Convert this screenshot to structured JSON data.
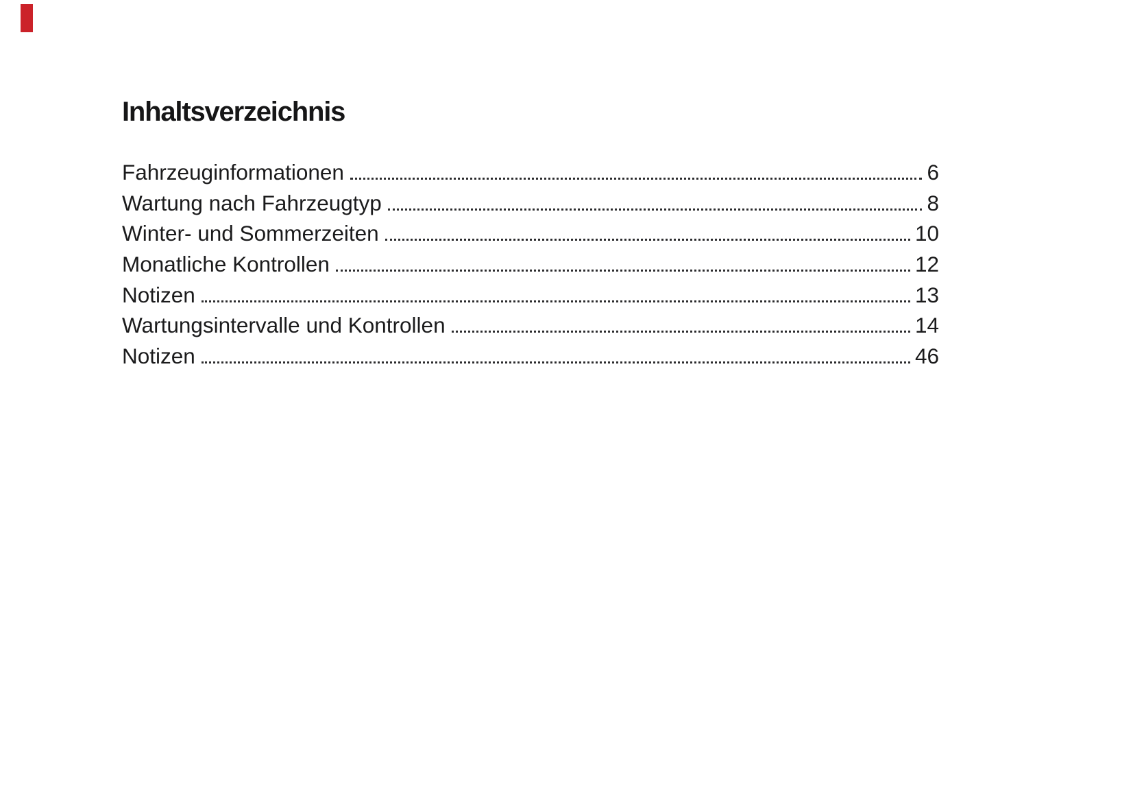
{
  "header": {
    "title": "Inhaltsverzeichnis"
  },
  "toc": {
    "entries": [
      {
        "label": "Fahrzeuginformationen",
        "page": "6"
      },
      {
        "label": "Wartung nach Fahrzeugtyp",
        "page": "8"
      },
      {
        "label": "Winter- und Sommerzeiten",
        "page": "10"
      },
      {
        "label": "Monatliche Kontrollen",
        "page": "12"
      },
      {
        "label": "Notizen",
        "page": "13"
      },
      {
        "label": "Wartungsintervalle und Kontrollen",
        "page": "14"
      },
      {
        "label": "Notizen",
        "page": "46"
      }
    ]
  },
  "colors": {
    "corner_tab": "#cb2229",
    "text": "#1b1b1c",
    "leader_dots": "#2c2c2e"
  }
}
